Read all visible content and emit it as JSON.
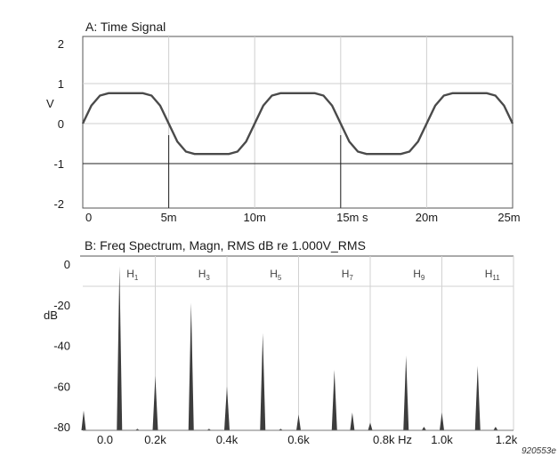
{
  "chart_data": [
    {
      "type": "line",
      "title": "A: Time Signal",
      "ylabel": "V",
      "xlabel": "",
      "x_unit": "s",
      "x_tick_labels": [
        "0",
        "5m",
        "10m",
        "15m s",
        "20m",
        "25m"
      ],
      "x_ticks": [
        0,
        0.005,
        0.01,
        0.015,
        0.02,
        0.025
      ],
      "y_tick_labels": [
        "2",
        "1",
        "0",
        "-1",
        "-2"
      ],
      "y_ticks": [
        2,
        1,
        0,
        -1,
        -2
      ],
      "xlim": [
        0,
        0.025
      ],
      "ylim": [
        -2,
        2
      ],
      "grid": true,
      "series": [
        {
          "x": [
            0,
            0.0005,
            0.001,
            0.0015,
            0.002,
            0.0025,
            0.003,
            0.0035,
            0.004,
            0.0045,
            0.005,
            0.0055,
            0.006,
            0.0065,
            0.007,
            0.0075,
            0.008,
            0.0085,
            0.009,
            0.0095,
            0.01,
            0.0105,
            0.011,
            0.0115,
            0.012,
            0.0125,
            0.013,
            0.0135,
            0.014,
            0.0145,
            0.015,
            0.0155,
            0.016,
            0.0165,
            0.017,
            0.0175,
            0.018,
            0.0185,
            0.019,
            0.0195,
            0.02,
            0.0205,
            0.021,
            0.0215,
            0.022,
            0.0225,
            0.023,
            0.0235,
            0.024,
            0.0245,
            0.025
          ],
          "y": [
            0,
            0.45,
            0.7,
            0.76,
            0.76,
            0.76,
            0.76,
            0.76,
            0.7,
            0.45,
            0,
            -0.45,
            -0.7,
            -0.76,
            -0.76,
            -0.76,
            -0.76,
            -0.76,
            -0.7,
            -0.45,
            0,
            0.45,
            0.7,
            0.76,
            0.76,
            0.76,
            0.76,
            0.76,
            0.7,
            0.45,
            0,
            -0.45,
            -0.7,
            -0.76,
            -0.76,
            -0.76,
            -0.76,
            -0.76,
            -0.7,
            -0.45,
            0,
            0.45,
            0.7,
            0.76,
            0.76,
            0.76,
            0.76,
            0.76,
            0.7,
            0.45,
            0
          ]
        }
      ]
    },
    {
      "type": "bar",
      "title": "B: Freq Spectrum, Magn, RMS dB re 1.000V_RMS",
      "ylabel": "dB",
      "xlabel": "",
      "x_unit": "Hz",
      "x_tick_labels": [
        "0.0",
        "0.2k",
        "0.4k",
        "0.6k",
        "0.8k Hz",
        "1.0k",
        "1.2k"
      ],
      "x_ticks": [
        0,
        200,
        400,
        600,
        800,
        1000,
        1200
      ],
      "y_tick_labels": [
        "0",
        "-20",
        "-40",
        "-60",
        "-80"
      ],
      "y_ticks": [
        0,
        -20,
        -40,
        -60,
        -80
      ],
      "xlim": [
        0,
        1200
      ],
      "ylim": [
        -82,
        0
      ],
      "grid": true,
      "harmonic_labels": [
        {
          "base": "H",
          "sub": "1",
          "x": 100
        },
        {
          "base": "H",
          "sub": "3",
          "x": 300
        },
        {
          "base": "H",
          "sub": "5",
          "x": 500
        },
        {
          "base": "H",
          "sub": "7",
          "x": 700
        },
        {
          "base": "H",
          "sub": "9",
          "x": 900
        },
        {
          "base": "H",
          "sub": "11",
          "x": 1100
        }
      ],
      "series": [
        {
          "x": [
            0,
            100,
            150,
            200,
            300,
            350,
            400,
            500,
            550,
            600,
            700,
            750,
            800,
            900,
            950,
            1000,
            1100,
            1150
          ],
          "values": [
            -72,
            -1,
            -81,
            -55,
            -19,
            -81,
            -60,
            -34,
            -81,
            -74,
            -52,
            -73,
            -78,
            -45,
            -80,
            -73,
            -50,
            -80
          ]
        }
      ]
    }
  ],
  "watermark": "920553e"
}
